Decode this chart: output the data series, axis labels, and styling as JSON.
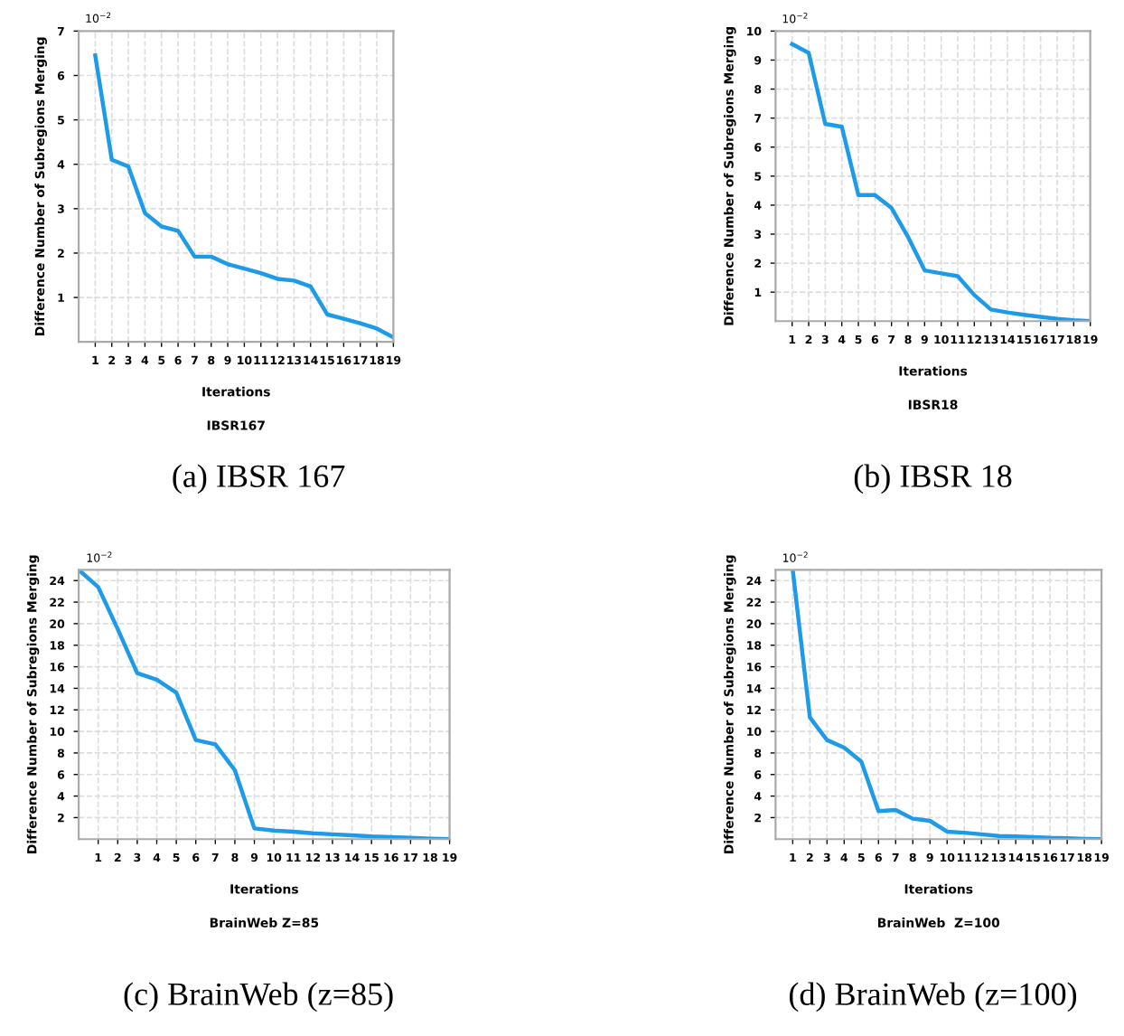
{
  "chart_data": [
    {
      "type": "line",
      "title": "(a) IBSR 167",
      "subtitle": "IBSR167",
      "xlabel": "Iterations",
      "ylabel": "Difference Number of Subregions Merging",
      "annotations": [
        "10$^{−2}$"
      ],
      "xlim": [
        0,
        19
      ],
      "xticks": [
        1,
        2,
        3,
        4,
        5,
        6,
        7,
        8,
        9,
        10,
        11,
        12,
        13,
        14,
        15,
        16,
        17,
        18,
        19
      ],
      "ylim": [
        0,
        7
      ],
      "yticks": [
        1,
        2,
        3,
        4,
        5,
        6,
        7
      ],
      "grid": true,
      "series": [
        {
          "color": "#1e9be8",
          "x": [
            1,
            2,
            3,
            4,
            5,
            6,
            7,
            8,
            9,
            10,
            11,
            12,
            13,
            14,
            15,
            16,
            17,
            18,
            19
          ],
          "values": [
            6.45,
            4.1,
            3.95,
            2.9,
            2.6,
            2.5,
            1.92,
            1.92,
            1.75,
            1.65,
            1.55,
            1.42,
            1.38,
            1.25,
            0.62,
            0.52,
            0.42,
            0.3,
            0.1
          ]
        }
      ]
    },
    {
      "type": "line",
      "title": "(b) IBSR 18",
      "subtitle": "IBSR18",
      "xlabel": "Iterations",
      "ylabel": "Difference Number of Subregions Merging",
      "annotations": [
        "10$^{−2}$"
      ],
      "xlim": [
        0,
        19
      ],
      "xticks": [
        1,
        2,
        3,
        4,
        5,
        6,
        7,
        8,
        9,
        10,
        11,
        12,
        13,
        14,
        15,
        16,
        17,
        18,
        19
      ],
      "ylim": [
        0,
        10
      ],
      "yticks": [
        1,
        2,
        3,
        4,
        5,
        6,
        7,
        8,
        9,
        10
      ],
      "grid": true,
      "series": [
        {
          "color": "#1e9be8",
          "x": [
            1,
            2,
            3,
            4,
            5,
            6,
            7,
            8,
            9,
            10,
            11,
            12,
            13,
            14,
            15,
            16,
            17,
            18,
            19
          ],
          "values": [
            9.55,
            9.25,
            6.8,
            6.7,
            4.35,
            4.35,
            3.9,
            2.9,
            1.75,
            1.65,
            1.55,
            0.9,
            0.4,
            0.3,
            0.22,
            0.15,
            0.08,
            0.03,
            0.0
          ]
        }
      ]
    },
    {
      "type": "line",
      "title": "(c) BrainWeb (z=85)",
      "subtitle": "BrainWeb Z=85",
      "xlabel": "Iterations",
      "ylabel": "Difference Number of Subregions Merging",
      "annotations": [
        "10$^{−2}$"
      ],
      "xlim": [
        0,
        19
      ],
      "xticks": [
        1,
        2,
        3,
        4,
        5,
        6,
        7,
        8,
        9,
        10,
        11,
        12,
        13,
        14,
        15,
        16,
        17,
        18,
        19
      ],
      "ylim": [
        0,
        25
      ],
      "yticks": [
        2,
        4,
        6,
        8,
        10,
        12,
        14,
        16,
        18,
        20,
        22,
        24
      ],
      "grid": true,
      "series": [
        {
          "color": "#1e9be8",
          "x": [
            0,
            1,
            2,
            3,
            4,
            5,
            6,
            7,
            8,
            9,
            10,
            11,
            12,
            13,
            14,
            15,
            16,
            17,
            18,
            19
          ],
          "values": [
            25,
            23.4,
            19.5,
            15.4,
            14.8,
            13.6,
            9.2,
            8.8,
            6.4,
            1.0,
            0.8,
            0.7,
            0.55,
            0.45,
            0.35,
            0.25,
            0.2,
            0.12,
            0.05,
            0.0
          ]
        }
      ]
    },
    {
      "type": "line",
      "title": "(d) BrainWeb (z=100)",
      "subtitle": "BrainWeb  Z=100",
      "xlabel": "Iterations",
      "ylabel": "Difference Number of Subregions Merging",
      "annotations": [
        "10$^{−2}$"
      ],
      "xlim": [
        0,
        19
      ],
      "xticks": [
        1,
        2,
        3,
        4,
        5,
        6,
        7,
        8,
        9,
        10,
        11,
        12,
        13,
        14,
        15,
        16,
        17,
        18,
        19
      ],
      "ylim": [
        0,
        25
      ],
      "yticks": [
        2,
        4,
        6,
        8,
        10,
        12,
        14,
        16,
        18,
        20,
        22,
        24
      ],
      "grid": true,
      "series": [
        {
          "color": "#1e9be8",
          "x": [
            1,
            2,
            3,
            4,
            5,
            6,
            7,
            8,
            9,
            10,
            11,
            12,
            13,
            14,
            15,
            16,
            17,
            18,
            19
          ],
          "values": [
            25,
            11.3,
            9.2,
            8.5,
            7.2,
            2.6,
            2.7,
            1.9,
            1.7,
            0.7,
            0.6,
            0.45,
            0.3,
            0.25,
            0.2,
            0.12,
            0.08,
            0.03,
            0.0
          ]
        }
      ]
    }
  ]
}
